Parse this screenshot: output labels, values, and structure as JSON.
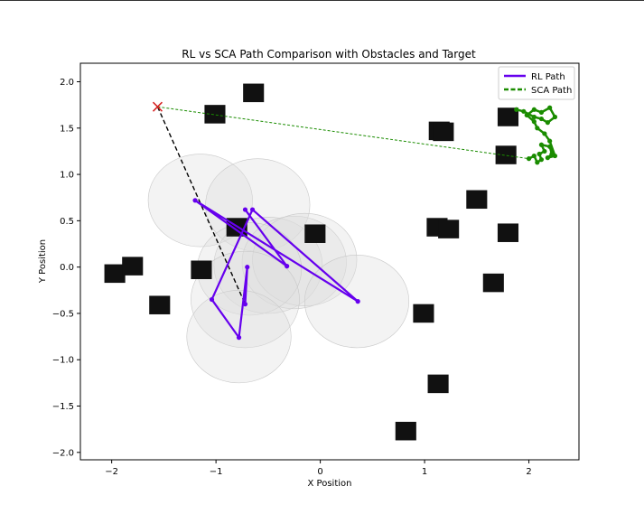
{
  "chart_data": {
    "type": "scatter",
    "title": "RL vs SCA Path Comparison with Obstacles and Target",
    "xlabel": "X Position",
    "ylabel": "Y Position",
    "xlim": [
      -2.3,
      2.48
    ],
    "ylim": [
      -2.08,
      2.2
    ],
    "xticks": [
      -2,
      -1,
      0,
      1,
      2
    ],
    "yticks": [
      -2.0,
      -1.5,
      -1.0,
      -0.5,
      0.0,
      0.5,
      1.0,
      1.5,
      2.0
    ],
    "xtick_labels": [
      "−2",
      "−1",
      "0",
      "1",
      "2"
    ],
    "ytick_labels": [
      "−2.0",
      "−1.5",
      "−1.0",
      "−0.5",
      "0.0",
      "0.5",
      "1.0",
      "1.5",
      "2.0"
    ],
    "grid": false,
    "legend_position": "top-right",
    "colors": {
      "rl": "#6600ee",
      "sca": "#1a8c00",
      "obstacle": "#111111",
      "target": "#d62020",
      "dashed_black": "#000000",
      "circle_fill": "#dcdcdc"
    },
    "series": [
      {
        "name": "RL Path",
        "style": "solid-with-markers",
        "points": [
          [
            -0.72,
            -0.4
          ],
          [
            -0.7,
            0.0
          ],
          [
            -0.78,
            -0.76
          ],
          [
            -1.04,
            -0.35
          ],
          [
            -0.65,
            0.62
          ],
          [
            0.36,
            -0.37
          ],
          [
            -1.2,
            0.72
          ],
          [
            -0.32,
            0.01
          ],
          [
            -0.72,
            0.62
          ]
        ]
      },
      {
        "name": "SCA Path",
        "style": "dashed-with-markers",
        "points": [
          [
            -1.56,
            1.73
          ],
          [
            2.0,
            1.17
          ],
          [
            2.05,
            1.2
          ],
          [
            2.08,
            1.13
          ],
          [
            2.12,
            1.16
          ],
          [
            2.1,
            1.22
          ],
          [
            2.15,
            1.25
          ],
          [
            2.12,
            1.32
          ],
          [
            2.2,
            1.3
          ],
          [
            2.22,
            1.22
          ],
          [
            2.18,
            1.18
          ],
          [
            2.25,
            1.2
          ],
          [
            2.2,
            1.36
          ],
          [
            2.15,
            1.44
          ],
          [
            2.08,
            1.5
          ],
          [
            2.05,
            1.57
          ],
          [
            1.98,
            1.64
          ],
          [
            2.05,
            1.7
          ],
          [
            2.12,
            1.67
          ],
          [
            2.2,
            1.72
          ],
          [
            2.25,
            1.62
          ],
          [
            2.18,
            1.56
          ],
          [
            2.12,
            1.6
          ],
          [
            2.05,
            1.62
          ],
          [
            1.95,
            1.68
          ],
          [
            1.88,
            1.7
          ]
        ]
      }
    ],
    "black_dashed_path": [
      [
        -1.56,
        1.73
      ],
      [
        -0.72,
        -0.4
      ]
    ],
    "target": [
      -1.56,
      1.73
    ],
    "obstacles": [
      [
        -0.64,
        1.88
      ],
      [
        -1.01,
        1.65
      ],
      [
        1.14,
        1.47
      ],
      [
        1.18,
        1.46
      ],
      [
        1.8,
        1.62
      ],
      [
        1.78,
        1.21
      ],
      [
        1.5,
        0.73
      ],
      [
        1.12,
        0.43
      ],
      [
        1.23,
        0.41
      ],
      [
        1.8,
        0.37
      ],
      [
        -0.8,
        0.43
      ],
      [
        -0.05,
        0.36
      ],
      [
        -1.97,
        -0.07
      ],
      [
        -1.8,
        0.01
      ],
      [
        -1.14,
        -0.03
      ],
      [
        -1.54,
        -0.41
      ],
      [
        1.66,
        -0.17
      ],
      [
        0.99,
        -0.5
      ],
      [
        1.13,
        -1.26
      ],
      [
        0.82,
        -1.77
      ]
    ],
    "obstacle_size": 0.2,
    "safety_circles": [
      {
        "center": [
          -1.15,
          0.72
        ],
        "radius": 0.5
      },
      {
        "center": [
          -0.6,
          0.67
        ],
        "radius": 0.5
      },
      {
        "center": [
          -0.5,
          0.02
        ],
        "radius": 0.52
      },
      {
        "center": [
          -0.25,
          0.05
        ],
        "radius": 0.5
      },
      {
        "center": [
          -0.15,
          0.08
        ],
        "radius": 0.5
      },
      {
        "center": [
          0.35,
          -0.37
        ],
        "radius": 0.5
      },
      {
        "center": [
          -0.68,
          -0.02
        ],
        "radius": 0.5
      },
      {
        "center": [
          -0.72,
          -0.35
        ],
        "radius": 0.52
      },
      {
        "center": [
          -0.78,
          -0.75
        ],
        "radius": 0.5
      }
    ]
  }
}
